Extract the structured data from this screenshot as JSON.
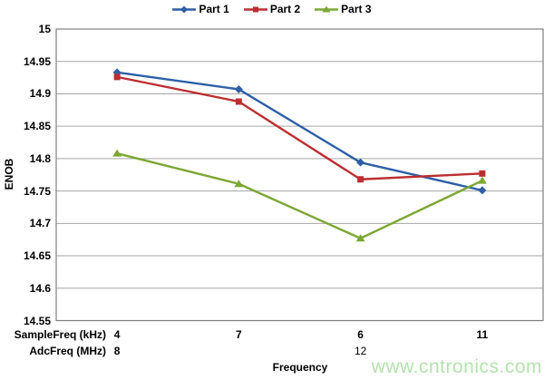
{
  "watermark": "www.cntronics.com",
  "chart_data": {
    "type": "line",
    "title": "",
    "xlabel": "Frequency",
    "ylabel": "ENOB",
    "ylim": [
      14.55,
      15
    ],
    "y_tick_step": 0.05,
    "y_ticks": [
      "15",
      "14.95",
      "14.9",
      "14.85",
      "14.8",
      "14.75",
      "14.7",
      "14.65",
      "14.6",
      "14.55"
    ],
    "grid": true,
    "legend_position": "top-center",
    "grid_color": "#a6a6a6",
    "border_color": "#7f7f7f",
    "x_rows": [
      {
        "header": "SampleFreq (kHz)",
        "values": [
          "4",
          "7",
          "6",
          "11"
        ],
        "bold": [
          true,
          true,
          true,
          true
        ]
      },
      {
        "header": "AdcFreq (MHz)",
        "values": [
          "8",
          "",
          "12",
          ""
        ],
        "bold": [
          true,
          false,
          false,
          false
        ]
      }
    ],
    "series": [
      {
        "name": "Part 1",
        "color": "#2d5fa6",
        "marker": "diamond",
        "values": [
          14.933,
          14.907,
          14.794,
          14.751
        ]
      },
      {
        "name": "Part 2",
        "color": "#bc2e32",
        "marker": "square",
        "values": [
          14.926,
          14.888,
          14.768,
          14.777
        ]
      },
      {
        "name": "Part 3",
        "color": "#7ca735",
        "marker": "triangle",
        "values": [
          14.808,
          14.761,
          14.677,
          14.766
        ]
      }
    ]
  }
}
